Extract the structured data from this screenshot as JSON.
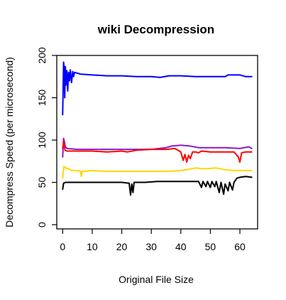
{
  "chart_data": {
    "type": "line",
    "title": "wiki Decompression",
    "xlabel": "Original File Size",
    "ylabel": "Decompress Speed (per microsecond)",
    "xlim": [
      -2,
      66
    ],
    "ylim": [
      -5,
      200
    ],
    "xticks": [
      0,
      10,
      20,
      30,
      40,
      50,
      60
    ],
    "yticks": [
      0,
      50,
      100,
      150,
      200
    ],
    "grid": false,
    "legend": "none",
    "series": [
      {
        "color": "#0000ff",
        "points": [
          [
            0,
            130
          ],
          [
            0.15,
            160
          ],
          [
            0.3,
            192
          ],
          [
            0.5,
            185
          ],
          [
            0.7,
            150
          ],
          [
            0.9,
            187
          ],
          [
            1.1,
            165
          ],
          [
            1.4,
            182
          ],
          [
            1.7,
            158
          ],
          [
            2.0,
            180
          ],
          [
            2.3,
            170
          ],
          [
            2.6,
            183
          ],
          [
            3.0,
            168
          ],
          [
            3.4,
            181
          ],
          [
            3.7,
            175
          ],
          [
            4.0,
            180
          ],
          [
            6,
            178
          ],
          [
            10,
            177
          ],
          [
            15,
            176
          ],
          [
            20,
            176
          ],
          [
            25,
            175
          ],
          [
            30,
            175
          ],
          [
            33,
            174
          ],
          [
            36,
            176
          ],
          [
            40,
            176
          ],
          [
            45,
            175
          ],
          [
            50,
            175
          ],
          [
            55,
            175
          ],
          [
            56,
            177
          ],
          [
            60,
            177
          ],
          [
            62,
            175
          ],
          [
            64,
            175
          ]
        ]
      },
      {
        "color": "#8b1ac8",
        "points": [
          [
            0,
            80
          ],
          [
            0.3,
            102
          ],
          [
            0.6,
            98
          ],
          [
            0.9,
            92
          ],
          [
            1.5,
            90
          ],
          [
            5,
            89
          ],
          [
            10,
            89
          ],
          [
            20,
            89
          ],
          [
            30,
            89
          ],
          [
            35,
            91
          ],
          [
            37,
            93
          ],
          [
            40,
            94
          ],
          [
            43,
            93
          ],
          [
            46,
            91
          ],
          [
            50,
            91
          ],
          [
            55,
            91
          ],
          [
            60,
            90
          ],
          [
            63,
            92
          ],
          [
            64,
            90
          ]
        ]
      },
      {
        "color": "#ff0000",
        "points": [
          [
            0,
            90
          ],
          [
            0.3,
            98
          ],
          [
            0.8,
            88
          ],
          [
            1.5,
            87
          ],
          [
            5,
            87
          ],
          [
            10,
            87
          ],
          [
            15,
            86
          ],
          [
            20,
            87
          ],
          [
            22,
            86
          ],
          [
            25,
            88
          ],
          [
            30,
            89
          ],
          [
            35,
            89
          ],
          [
            38,
            90
          ],
          [
            40,
            86
          ],
          [
            40.8,
            76
          ],
          [
            41.4,
            83
          ],
          [
            42,
            74
          ],
          [
            42.6,
            82
          ],
          [
            43.2,
            78
          ],
          [
            44,
            86
          ],
          [
            45,
            86
          ],
          [
            46,
            85
          ],
          [
            47,
            87
          ],
          [
            50,
            86
          ],
          [
            55,
            86
          ],
          [
            58,
            86
          ],
          [
            59.5,
            80
          ],
          [
            60,
            74
          ],
          [
            60.6,
            85
          ],
          [
            62,
            86
          ],
          [
            64,
            86
          ]
        ]
      },
      {
        "color": "#ffd700",
        "points": [
          [
            0,
            55
          ],
          [
            0.4,
            69
          ],
          [
            1.0,
            67
          ],
          [
            2.0,
            66
          ],
          [
            3.0,
            64
          ],
          [
            5,
            64
          ],
          [
            6,
            63
          ],
          [
            6.3,
            57
          ],
          [
            6.6,
            63
          ],
          [
            10,
            64
          ],
          [
            15,
            63
          ],
          [
            20,
            63
          ],
          [
            25,
            63
          ],
          [
            30,
            63
          ],
          [
            35,
            63
          ],
          [
            40,
            64
          ],
          [
            42,
            65
          ],
          [
            45,
            67
          ],
          [
            48,
            66
          ],
          [
            52,
            67
          ],
          [
            55,
            65
          ],
          [
            58,
            64
          ],
          [
            60,
            64
          ],
          [
            64,
            64
          ]
        ]
      },
      {
        "color": "#000000",
        "points": [
          [
            0,
            42
          ],
          [
            0.3,
            49
          ],
          [
            1.0,
            50
          ],
          [
            5,
            50
          ],
          [
            10,
            50
          ],
          [
            15,
            50
          ],
          [
            20,
            50
          ],
          [
            22.5,
            49
          ],
          [
            23,
            35
          ],
          [
            23.4,
            48
          ],
          [
            23.8,
            38
          ],
          [
            24.2,
            50
          ],
          [
            28,
            50
          ],
          [
            32,
            51
          ],
          [
            36,
            51
          ],
          [
            40,
            51
          ],
          [
            44,
            51
          ],
          [
            46,
            51
          ],
          [
            47,
            44
          ],
          [
            47.5,
            51
          ],
          [
            48.5,
            45
          ],
          [
            49,
            51
          ],
          [
            50,
            44
          ],
          [
            50.5,
            51
          ],
          [
            51.5,
            45
          ],
          [
            52,
            51
          ],
          [
            53,
            38
          ],
          [
            53.6,
            50
          ],
          [
            54.5,
            36
          ],
          [
            55,
            48
          ],
          [
            56,
            40
          ],
          [
            56.5,
            50
          ],
          [
            57.5,
            41
          ],
          [
            58,
            50
          ],
          [
            59,
            55
          ],
          [
            60,
            56
          ],
          [
            62,
            57
          ],
          [
            64,
            56
          ]
        ]
      }
    ]
  }
}
